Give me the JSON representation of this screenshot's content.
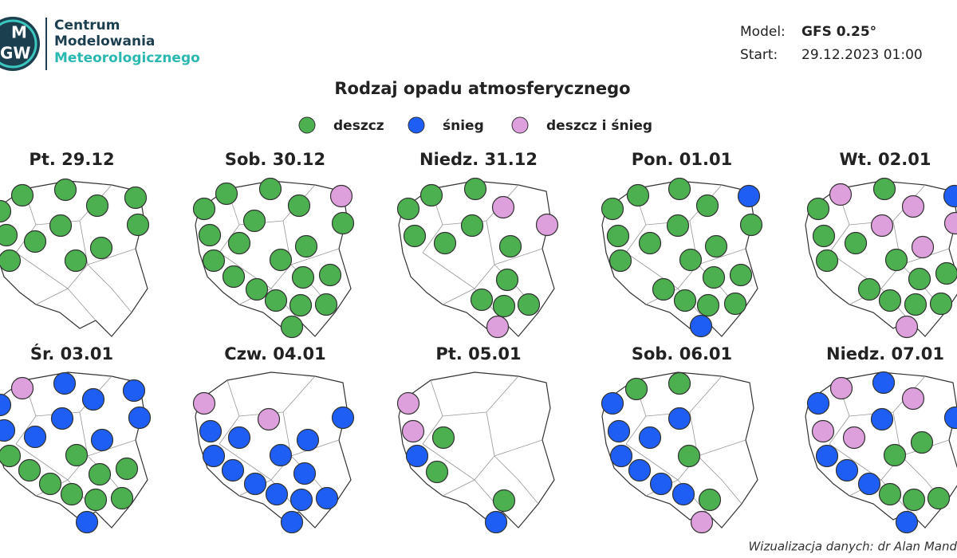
{
  "logo": {
    "mark_top": "M",
    "mark_bottom": "GW",
    "line1": "Centrum",
    "line2": "Modelowania",
    "line3": "Meteorologicznego"
  },
  "model": {
    "label": "Model:",
    "value": "GFS 0.25°"
  },
  "start": {
    "label": "Start:",
    "value": "29.12.2023 01:00"
  },
  "title": "Rodzaj opadu atmosferycznego",
  "legend": [
    {
      "label": "deszcz",
      "color": "#4caf50"
    },
    {
      "label": "śnieg",
      "color": "#1f5ef5"
    },
    {
      "label": "deszcz i śnieg",
      "color": "#dda0dc"
    }
  ],
  "panels": [
    {
      "day": "Pt. 29.12",
      "points": [
        "deszcz",
        "deszcz",
        "deszcz",
        "deszcz",
        "deszcz",
        "deszcz",
        "deszcz",
        "deszcz",
        "deszcz",
        "deszcz",
        "deszcz",
        "deszcz"
      ]
    },
    {
      "day": "Sob. 30.12",
      "points": [
        "deszcz",
        "deszcz",
        "deszcz",
        "deszcz i śnieg",
        "deszcz",
        "deszcz",
        "deszcz",
        "deszcz",
        "deszcz",
        "deszcz",
        "deszcz",
        "deszcz",
        "deszcz",
        "deszcz",
        "deszcz",
        "deszcz",
        "deszcz",
        "deszcz",
        "deszcz",
        "deszcz"
      ]
    },
    {
      "day": "Niedz. 31.12",
      "points": [
        "deszcz",
        "deszcz",
        "deszcz i śnieg",
        "deszcz",
        "deszcz i śnieg",
        "deszcz",
        "deszcz",
        "deszcz",
        "deszcz",
        "deszcz",
        "deszcz",
        "deszcz",
        "deszcz",
        "deszcz i śnieg"
      ]
    },
    {
      "day": "Pon. 01.01",
      "points": [
        "deszcz",
        "deszcz",
        "śnieg",
        "deszcz",
        "deszcz",
        "deszcz",
        "deszcz",
        "deszcz",
        "deszcz",
        "deszcz",
        "deszcz",
        "deszcz",
        "deszcz",
        "deszcz",
        "deszcz",
        "deszcz",
        "deszcz",
        "deszcz",
        "śnieg"
      ]
    },
    {
      "day": "Wt. 02.01",
      "points": [
        "deszcz i śnieg",
        "deszcz",
        "śnieg",
        "deszcz i śnieg",
        "deszcz",
        "deszcz i śnieg",
        "deszcz i śnieg",
        "deszcz",
        "deszcz",
        "deszcz i śnieg",
        "deszcz",
        "deszcz",
        "deszcz",
        "deszcz",
        "deszcz",
        "deszcz",
        "deszcz",
        "deszcz",
        "deszcz i śnieg"
      ]
    },
    {
      "day": "Śr. 03.01",
      "points": [
        "deszcz i śnieg",
        "śnieg",
        "śnieg",
        "śnieg",
        "śnieg",
        "śnieg",
        "śnieg",
        "śnieg",
        "śnieg",
        "śnieg",
        "deszcz",
        "deszcz",
        "deszcz",
        "deszcz",
        "deszcz",
        "deszcz",
        "deszcz",
        "deszcz",
        "deszcz",
        "śnieg"
      ]
    },
    {
      "day": "Czw. 04.01",
      "points": [
        "deszcz i śnieg",
        "deszcz i śnieg",
        "śnieg",
        "śnieg",
        "śnieg",
        "śnieg",
        "śnieg",
        "śnieg",
        "śnieg",
        "śnieg",
        "śnieg",
        "śnieg",
        "śnieg",
        "śnieg",
        "śnieg"
      ]
    },
    {
      "day": "Pt. 05.01",
      "points": [
        "deszcz i śnieg",
        "deszcz i śnieg",
        "deszcz",
        "śnieg",
        "deszcz",
        "deszcz",
        "śnieg"
      ]
    },
    {
      "day": "Sob. 06.01",
      "points": [
        "deszcz",
        "deszcz",
        "śnieg",
        "śnieg",
        "śnieg",
        "śnieg",
        "deszcz",
        "śnieg",
        "śnieg",
        "śnieg",
        "śnieg",
        "deszcz",
        "deszcz i śnieg"
      ]
    },
    {
      "day": "Niedz. 07.01",
      "points": [
        "deszcz i śnieg",
        "śnieg",
        "deszcz i śnieg",
        "śnieg",
        "śnieg",
        "śnieg",
        "deszcz i śnieg",
        "deszcz i śnieg",
        "deszcz",
        "śnieg",
        "deszcz",
        "śnieg",
        "śnieg",
        "deszcz",
        "deszcz",
        "deszcz",
        "śnieg"
      ]
    }
  ],
  "credit": "Wizualizacja danych: dr Alan Mand"
}
